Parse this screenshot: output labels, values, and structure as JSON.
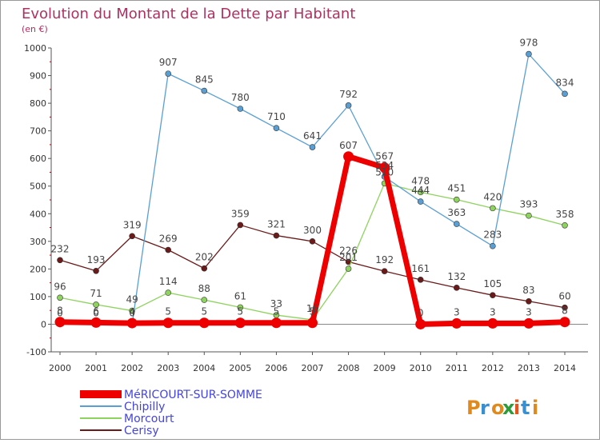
{
  "chart_data": {
    "type": "line",
    "title": "Evolution du Montant de la Dette par Habitant",
    "subtitle": "(en €)",
    "x": [
      "2000",
      "2001",
      "2002",
      "2003",
      "2004",
      "2005",
      "2006",
      "2007",
      "2008",
      "2009",
      "2010",
      "2011",
      "2012",
      "2013",
      "2014"
    ],
    "ylim": [
      -100,
      1000
    ],
    "yticks": [
      "-100",
      "0",
      "100",
      "200",
      "300",
      "400",
      "500",
      "600",
      "700",
      "800",
      "900",
      "1000"
    ],
    "grid": false,
    "legend_position": "bottom-left",
    "series": [
      {
        "name": "Cerisy",
        "color": "#6b1a1a",
        "values": [
          232,
          193,
          319,
          269,
          202,
          359,
          321,
          300,
          226,
          192,
          161,
          132,
          105,
          83,
          60
        ],
        "labels": [
          "232",
          "193",
          "319",
          "269",
          "202",
          "359",
          "321",
          "300",
          "226",
          "192",
          "161",
          "132",
          "105",
          "83",
          "60"
        ]
      },
      {
        "name": "Morcourt",
        "color": "#8fd35f",
        "values": [
          96,
          71,
          49,
          114,
          88,
          61,
          33,
          16,
          201,
          510,
          478,
          451,
          420,
          393,
          358
        ],
        "labels": [
          "96",
          "71",
          "49",
          "114",
          "88",
          "61",
          "33",
          "16",
          "201",
          "510",
          "478",
          "451",
          "420",
          "393",
          "358"
        ]
      },
      {
        "name": "Chipilly",
        "color": "#5a9fd4",
        "values": [
          0,
          0,
          0,
          907,
          845,
          780,
          710,
          641,
          792,
          534,
          444,
          363,
          283,
          978,
          834
        ],
        "labels": [
          "0",
          "0",
          "0",
          "907",
          "845",
          "780",
          "710",
          "641",
          "792",
          "534",
          "444",
          "363",
          "283",
          "978",
          "834"
        ]
      },
      {
        "name": "MéRICOURT-SUR-SOMME",
        "color": "#ee0000",
        "values": [
          8,
          6,
          4,
          5,
          5,
          5,
          5,
          5,
          607,
          567,
          0,
          3,
          3,
          3,
          8
        ],
        "labels": [
          "8",
          "6",
          "4",
          "5",
          "5",
          "5",
          "5",
          "5",
          "607",
          "567",
          "0",
          "3",
          "3",
          "3",
          "8"
        ]
      }
    ]
  },
  "legend_order": [
    3,
    2,
    1,
    0
  ],
  "branding": {
    "logo_text": "Proxiti"
  }
}
